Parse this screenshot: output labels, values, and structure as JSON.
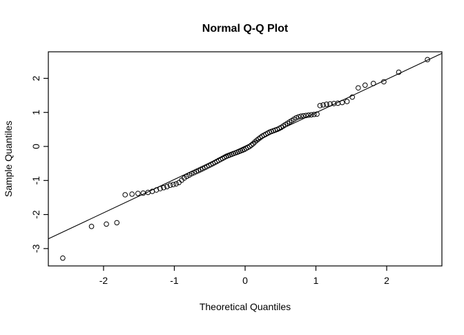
{
  "chart_data": {
    "type": "scatter",
    "subtype": "qq-plot",
    "title": "Normal Q-Q Plot",
    "xlabel": "Theoretical Quantiles",
    "ylabel": "Sample Quantiles",
    "xlim": [
      -2.78,
      2.78
    ],
    "ylim": [
      -3.51,
      2.78
    ],
    "x_ticks": [
      -2,
      -1,
      0,
      1,
      2
    ],
    "y_ticks": [
      -3,
      -2,
      -1,
      0,
      1,
      2
    ],
    "grid": false,
    "legend": false,
    "colors": {
      "points": "#000000",
      "line": "#000000",
      "box": "#000000",
      "background": "#ffffff"
    },
    "point_style": "open-circle",
    "reference_line": {
      "slope": 0.98,
      "intercept": 0.01
    },
    "points": [
      [
        -2.576,
        -3.28
      ],
      [
        -2.17,
        -2.35
      ],
      [
        -1.96,
        -2.28
      ],
      [
        -1.812,
        -2.24
      ],
      [
        -1.695,
        -1.42
      ],
      [
        -1.598,
        -1.4
      ],
      [
        -1.514,
        -1.38
      ],
      [
        -1.44,
        -1.37
      ],
      [
        -1.372,
        -1.35
      ],
      [
        -1.311,
        -1.32
      ],
      [
        -1.254,
        -1.28
      ],
      [
        -1.2,
        -1.24
      ],
      [
        -1.15,
        -1.21
      ],
      [
        -1.103,
        -1.18
      ],
      [
        -1.058,
        -1.14
      ],
      [
        -1.015,
        -1.12
      ],
      [
        -0.974,
        -1.1
      ],
      [
        -0.935,
        -1.06
      ],
      [
        -0.896,
        -0.99
      ],
      [
        -0.86,
        -0.93
      ],
      [
        -0.824,
        -0.88
      ],
      [
        -0.789,
        -0.84
      ],
      [
        -0.755,
        -0.8
      ],
      [
        -0.722,
        -0.77
      ],
      [
        -0.69,
        -0.74
      ],
      [
        -0.659,
        -0.71
      ],
      [
        -0.628,
        -0.68
      ],
      [
        -0.598,
        -0.65
      ],
      [
        -0.568,
        -0.62
      ],
      [
        -0.539,
        -0.59
      ],
      [
        -0.51,
        -0.56
      ],
      [
        -0.482,
        -0.53
      ],
      [
        -0.454,
        -0.5
      ],
      [
        -0.426,
        -0.47
      ],
      [
        -0.399,
        -0.44
      ],
      [
        -0.372,
        -0.41
      ],
      [
        -0.345,
        -0.38
      ],
      [
        -0.319,
        -0.35
      ],
      [
        -0.292,
        -0.32
      ],
      [
        -0.266,
        -0.29
      ],
      [
        -0.24,
        -0.27
      ],
      [
        -0.215,
        -0.25
      ],
      [
        -0.189,
        -0.23
      ],
      [
        -0.164,
        -0.21
      ],
      [
        -0.138,
        -0.19
      ],
      [
        -0.113,
        -0.17
      ],
      [
        -0.088,
        -0.15
      ],
      [
        -0.063,
        -0.13
      ],
      [
        -0.038,
        -0.11
      ],
      [
        -0.013,
        -0.09
      ],
      [
        0.013,
        -0.06
      ],
      [
        0.038,
        -0.03
      ],
      [
        0.063,
        0.0
      ],
      [
        0.088,
        0.04
      ],
      [
        0.113,
        0.08
      ],
      [
        0.138,
        0.13
      ],
      [
        0.164,
        0.18
      ],
      [
        0.189,
        0.22
      ],
      [
        0.215,
        0.26
      ],
      [
        0.24,
        0.3
      ],
      [
        0.266,
        0.33
      ],
      [
        0.292,
        0.36
      ],
      [
        0.319,
        0.39
      ],
      [
        0.345,
        0.42
      ],
      [
        0.372,
        0.44
      ],
      [
        0.399,
        0.46
      ],
      [
        0.426,
        0.48
      ],
      [
        0.454,
        0.5
      ],
      [
        0.482,
        0.53
      ],
      [
        0.51,
        0.56
      ],
      [
        0.539,
        0.6
      ],
      [
        0.568,
        0.64
      ],
      [
        0.598,
        0.68
      ],
      [
        0.628,
        0.72
      ],
      [
        0.659,
        0.76
      ],
      [
        0.69,
        0.8
      ],
      [
        0.722,
        0.84
      ],
      [
        0.755,
        0.87
      ],
      [
        0.789,
        0.89
      ],
      [
        0.824,
        0.9
      ],
      [
        0.86,
        0.91
      ],
      [
        0.896,
        0.92
      ],
      [
        0.935,
        0.93
      ],
      [
        0.974,
        0.94
      ],
      [
        1.015,
        0.95
      ],
      [
        1.058,
        1.2
      ],
      [
        1.103,
        1.22
      ],
      [
        1.15,
        1.24
      ],
      [
        1.2,
        1.25
      ],
      [
        1.254,
        1.26
      ],
      [
        1.311,
        1.27
      ],
      [
        1.372,
        1.29
      ],
      [
        1.44,
        1.32
      ],
      [
        1.514,
        1.45
      ],
      [
        1.598,
        1.72
      ],
      [
        1.695,
        1.8
      ],
      [
        1.812,
        1.85
      ],
      [
        1.96,
        1.9
      ],
      [
        2.17,
        2.18
      ],
      [
        2.576,
        2.55
      ]
    ]
  }
}
